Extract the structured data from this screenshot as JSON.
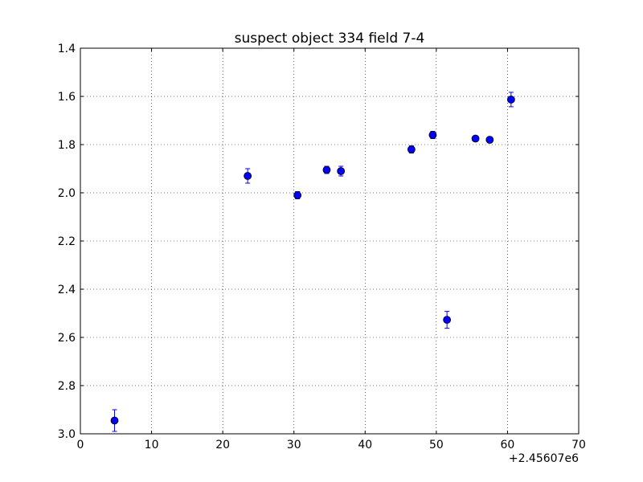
{
  "chart_data": {
    "type": "scatter",
    "title": "suspect object 334 field 7-4",
    "xlabel": "",
    "ylabel": "",
    "x_offset_label": "+2.45607e6",
    "xlim": [
      0,
      70
    ],
    "ylim": [
      1.4,
      3.0
    ],
    "y_inverted": true,
    "grid": true,
    "x_ticks": [
      0,
      10,
      20,
      30,
      40,
      50,
      60,
      70
    ],
    "x_tick_labels": [
      "0",
      "10",
      "20",
      "30",
      "40",
      "50",
      "60",
      "70"
    ],
    "y_ticks": [
      1.4,
      1.6,
      1.8,
      2.0,
      2.2,
      2.4,
      2.6,
      2.8,
      3.0
    ],
    "y_tick_labels": [
      "1.4",
      "1.6",
      "1.8",
      "2.0",
      "2.2",
      "2.4",
      "2.6",
      "2.8",
      "3.0"
    ],
    "marker_color": "#0000ff",
    "points": [
      {
        "x": 4.8,
        "y": 2.945,
        "err": 0.045
      },
      {
        "x": 23.5,
        "y": 1.93,
        "err": 0.03
      },
      {
        "x": 30.5,
        "y": 2.01,
        "err": 0.015
      },
      {
        "x": 34.6,
        "y": 1.905,
        "err": 0.015
      },
      {
        "x": 36.6,
        "y": 1.91,
        "err": 0.02
      },
      {
        "x": 46.5,
        "y": 1.82,
        "err": 0.015
      },
      {
        "x": 49.5,
        "y": 1.76,
        "err": 0.015
      },
      {
        "x": 51.5,
        "y": 2.527,
        "err": 0.035
      },
      {
        "x": 55.5,
        "y": 1.775,
        "err": 0.01
      },
      {
        "x": 57.5,
        "y": 1.78,
        "err": 0.012
      },
      {
        "x": 60.5,
        "y": 1.613,
        "err": 0.03
      }
    ]
  }
}
